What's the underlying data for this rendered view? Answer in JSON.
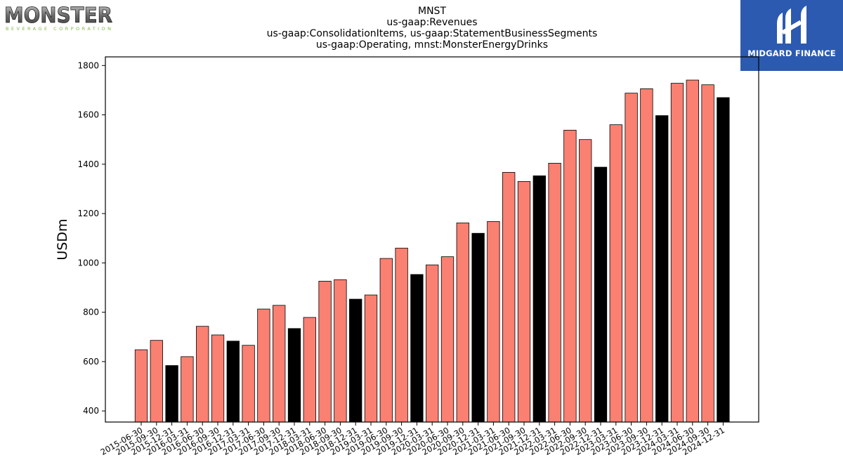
{
  "logos": {
    "left_top": "MONSTER",
    "left_sub": "BEVERAGE CORPORATION",
    "right": "MIDGARD FINANCE"
  },
  "chart_data": {
    "type": "bar",
    "title": "MNST\nus-gaap:Revenues\nus-gaap:ConsolidationItems, us-gaap:StatementBusinessSegments\nus-gaap:Operating, mnst:MonsterEnergyDrinks",
    "title_lines": [
      "MNST",
      "us-gaap:Revenues",
      "us-gaap:ConsolidationItems, us-gaap:StatementBusinessSegments",
      "us-gaap:Operating, mnst:MonsterEnergyDrinks"
    ],
    "xlabel": "",
    "ylabel": "USDm",
    "ylim": [
      355,
      1835
    ],
    "yticks": [
      400,
      600,
      800,
      1000,
      1200,
      1400,
      1600,
      1800
    ],
    "grid": false,
    "colors": {
      "quarter": "#fa8072",
      "year_end": "#000000",
      "edge": "#000000"
    },
    "categories": [
      "2015-06-30",
      "2015-09-30",
      "2015-12-31",
      "2016-03-31",
      "2016-06-30",
      "2016-09-30",
      "2016-12-31",
      "2017-03-31",
      "2017-06-30",
      "2017-09-30",
      "2017-12-31",
      "2018-03-31",
      "2018-06-30",
      "2018-09-30",
      "2018-12-31",
      "2019-03-31",
      "2019-06-30",
      "2019-09-30",
      "2019-12-31",
      "2020-03-31",
      "2020-06-30",
      "2020-09-30",
      "2020-12-31",
      "2021-03-31",
      "2021-06-30",
      "2021-09-30",
      "2021-12-31",
      "2022-03-31",
      "2022-06-30",
      "2022-09-30",
      "2022-12-31",
      "2023-03-31",
      "2023-06-30",
      "2023-09-30",
      "2023-12-31",
      "2024-03-31",
      "2024-06-30",
      "2024-09-30",
      "2024-12-31"
    ],
    "values": [
      648,
      686,
      584,
      620,
      743,
      708,
      683,
      666,
      813,
      828,
      734,
      779,
      926,
      932,
      853,
      870,
      1018,
      1060,
      953,
      992,
      1025,
      1162,
      1120,
      1168,
      1367,
      1330,
      1353,
      1404,
      1538,
      1500,
      1388,
      1560,
      1688,
      1706,
      1597,
      1728,
      1741,
      1722,
      1670
    ],
    "highlight": [
      false,
      false,
      true,
      false,
      false,
      false,
      true,
      false,
      false,
      false,
      true,
      false,
      false,
      false,
      true,
      false,
      false,
      false,
      true,
      false,
      false,
      false,
      true,
      false,
      false,
      false,
      true,
      false,
      false,
      false,
      true,
      false,
      false,
      false,
      true,
      false,
      false,
      false,
      true
    ]
  }
}
